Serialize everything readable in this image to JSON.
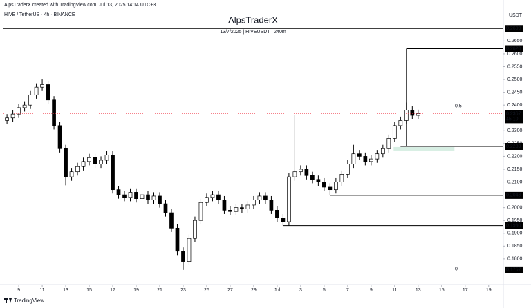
{
  "chart_data": {
    "type": "candlestick",
    "watermark": "AlpsTraderX created with TradingView.com, Jul 13, 2025 14:14 UTC+3",
    "symbol": "HIVE / TetherUS · 4h · BINANCE",
    "title": "AlpsTraderX",
    "subtitle": "13/7/2025 | HIVEUSDT | 240m",
    "axis_unit": "USDT",
    "brand": "TradingView",
    "up_color": "#ffffff",
    "down_color": "#000000",
    "open": [
      0.234,
      0.235,
      0.2365,
      0.239,
      0.24,
      0.244,
      0.247,
      0.248,
      0.242,
      0.232,
      0.223,
      0.212,
      0.214,
      0.216,
      0.218,
      0.2195,
      0.217,
      0.2185,
      0.2205,
      0.207,
      0.205,
      0.204,
      0.206,
      0.2035,
      0.205,
      0.203,
      0.2045,
      0.2015,
      0.198,
      0.192,
      0.183,
      0.179,
      0.188,
      0.195,
      0.202,
      0.204,
      0.205,
      0.203,
      0.199,
      0.1985,
      0.2,
      0.1995,
      0.201,
      0.203,
      0.2045,
      0.203,
      0.199,
      0.196,
      0.1945,
      0.212,
      0.214,
      0.215,
      0.2125,
      0.211,
      0.21,
      0.208,
      0.207,
      0.21,
      0.213,
      0.217,
      0.221,
      0.22,
      0.218,
      0.219,
      0.221,
      0.223,
      0.227,
      0.232,
      0.234,
      0.238,
      0.236
    ],
    "high": [
      0.2365,
      0.238,
      0.2405,
      0.2415,
      0.2455,
      0.2485,
      0.25,
      0.2495,
      0.2435,
      0.2335,
      0.2245,
      0.2155,
      0.2175,
      0.2195,
      0.221,
      0.221,
      0.22,
      0.222,
      0.222,
      0.2085,
      0.2065,
      0.2075,
      0.2075,
      0.2065,
      0.2065,
      0.206,
      0.206,
      0.203,
      0.1995,
      0.1935,
      0.1845,
      0.1895,
      0.1965,
      0.2035,
      0.2055,
      0.2065,
      0.2065,
      0.2045,
      0.2005,
      0.2015,
      0.2015,
      0.2025,
      0.2045,
      0.206,
      0.206,
      0.2045,
      0.2005,
      0.1975,
      0.2135,
      0.236,
      0.2165,
      0.2165,
      0.214,
      0.2125,
      0.2115,
      0.2095,
      0.2115,
      0.2145,
      0.2185,
      0.2245,
      0.2225,
      0.2215,
      0.2205,
      0.2225,
      0.2245,
      0.2285,
      0.2335,
      0.2355,
      0.241,
      0.2395,
      0.2382
    ],
    "low": [
      0.2325,
      0.2335,
      0.235,
      0.2375,
      0.2385,
      0.2425,
      0.2455,
      0.2405,
      0.2305,
      0.2215,
      0.2087,
      0.2105,
      0.2125,
      0.2145,
      0.2165,
      0.2155,
      0.2155,
      0.217,
      0.2055,
      0.2035,
      0.2025,
      0.2025,
      0.202,
      0.202,
      0.2015,
      0.2015,
      0.2,
      0.1965,
      0.1905,
      0.1815,
      0.1757,
      0.1775,
      0.1865,
      0.1935,
      0.2005,
      0.2025,
      0.2015,
      0.1975,
      0.197,
      0.197,
      0.198,
      0.198,
      0.1995,
      0.2015,
      0.2015,
      0.1975,
      0.1945,
      0.193,
      0.193,
      0.2105,
      0.2125,
      0.211,
      0.2095,
      0.2085,
      0.2065,
      0.2048,
      0.2055,
      0.2085,
      0.2115,
      0.2155,
      0.2185,
      0.2165,
      0.2165,
      0.2175,
      0.2195,
      0.2215,
      0.2255,
      0.2305,
      0.2325,
      0.2345,
      0.2345
    ],
    "close": [
      0.235,
      0.2365,
      0.239,
      0.24,
      0.244,
      0.247,
      0.248,
      0.242,
      0.232,
      0.223,
      0.212,
      0.214,
      0.216,
      0.218,
      0.2195,
      0.217,
      0.2185,
      0.2205,
      0.207,
      0.205,
      0.204,
      0.206,
      0.2035,
      0.205,
      0.203,
      0.2045,
      0.2015,
      0.198,
      0.192,
      0.183,
      0.179,
      0.188,
      0.195,
      0.202,
      0.204,
      0.205,
      0.203,
      0.199,
      0.1985,
      0.2,
      0.1995,
      0.201,
      0.203,
      0.2045,
      0.203,
      0.199,
      0.196,
      0.1945,
      0.212,
      0.214,
      0.215,
      0.2125,
      0.211,
      0.21,
      0.208,
      0.207,
      0.21,
      0.213,
      0.217,
      0.221,
      0.22,
      0.218,
      0.219,
      0.221,
      0.223,
      0.227,
      0.232,
      0.234,
      0.238,
      0.236,
      0.2367
    ],
    "xlim": [
      -0.6,
      84.5
    ],
    "xticks": [
      {
        "value": 2,
        "label": "9"
      },
      {
        "value": 6,
        "label": "11"
      },
      {
        "value": 10,
        "label": "13"
      },
      {
        "value": 14,
        "label": "15"
      },
      {
        "value": 18,
        "label": "17"
      },
      {
        "value": 22,
        "label": "19"
      },
      {
        "value": 26,
        "label": "21"
      },
      {
        "value": 30,
        "label": "23"
      },
      {
        "value": 34,
        "label": "25"
      },
      {
        "value": 38,
        "label": "27"
      },
      {
        "value": 42,
        "label": "29"
      },
      {
        "value": 46,
        "label": "Jul"
      },
      {
        "value": 50,
        "label": "3"
      },
      {
        "value": 54,
        "label": "5"
      },
      {
        "value": 58,
        "label": "7"
      },
      {
        "value": 62,
        "label": "9"
      },
      {
        "value": 66,
        "label": "11"
      },
      {
        "value": 70,
        "label": "13"
      },
      {
        "value": 74,
        "label": "15"
      },
      {
        "value": 78,
        "label": "17"
      },
      {
        "value": 82,
        "label": "19"
      }
    ],
    "ylim": [
      0.17,
      0.281
    ],
    "yticks": [
      {
        "value": 0.265,
        "label": "0.2650"
      },
      {
        "value": 0.26,
        "label": "0.2600"
      },
      {
        "value": 0.255,
        "label": "0.2550"
      },
      {
        "value": 0.25,
        "label": "0.2500"
      },
      {
        "value": 0.245,
        "label": "0.2450"
      },
      {
        "value": 0.24,
        "label": "0.2400"
      },
      {
        "value": 0.23,
        "label": "0.2300"
      },
      {
        "value": 0.225,
        "label": "0.2250"
      },
      {
        "value": 0.22,
        "label": "0.2200"
      },
      {
        "value": 0.215,
        "label": "0.2150"
      },
      {
        "value": 0.21,
        "label": "0.2100"
      },
      {
        "value": 0.2,
        "label": "0.2000"
      },
      {
        "value": 0.195,
        "label": "0.1950"
      },
      {
        "value": 0.19,
        "label": "0.1900"
      },
      {
        "value": 0.185,
        "label": "0.1850"
      },
      {
        "value": 0.18,
        "label": "0.1800"
      }
    ],
    "levels": [
      {
        "value": 0.2699,
        "label": "0.2699"
      },
      {
        "value": 0.262,
        "label": "0.2620",
        "from": 68
      },
      {
        "value": 0.2239,
        "label": "0.2239",
        "from": 67
      },
      {
        "value": 0.2048,
        "label": "0.2048",
        "from": 55
      },
      {
        "value": 0.193,
        "label": "0.1930",
        "from": 47
      },
      {
        "value": 0.1757,
        "label": "0.1757"
      }
    ],
    "last_price": {
      "value": 0.2367,
      "label": "0.2367",
      "countdown": "45:10"
    },
    "fib": [
      {
        "label": "0.5",
        "value": 0.238,
        "color": "#4caf50"
      },
      {
        "label": "0",
        "value": 0.176,
        "color": "#9e9e9e"
      }
    ]
  }
}
